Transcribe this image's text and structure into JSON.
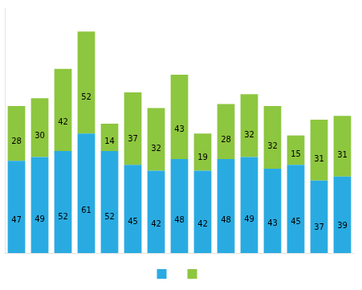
{
  "chart_data": {
    "type": "bar",
    "stacked": true,
    "categories": [
      null,
      null,
      null,
      null,
      null,
      null,
      null,
      null,
      null,
      null,
      null,
      null,
      null,
      null,
      null
    ],
    "series": [
      {
        "color": "#29ABE2",
        "values": [
          47,
          49,
          52,
          61,
          52,
          45,
          42,
          48,
          42,
          48,
          49,
          43,
          45,
          37,
          39
        ]
      },
      {
        "color": "#8DC63F",
        "values": [
          28,
          30,
          42,
          52,
          14,
          37,
          32,
          43,
          19,
          28,
          32,
          32,
          15,
          31,
          31
        ]
      }
    ],
    "ylim": [
      0,
      125
    ],
    "grid": false,
    "tick_labels": false,
    "data_labels": true,
    "legend": "bottom"
  }
}
